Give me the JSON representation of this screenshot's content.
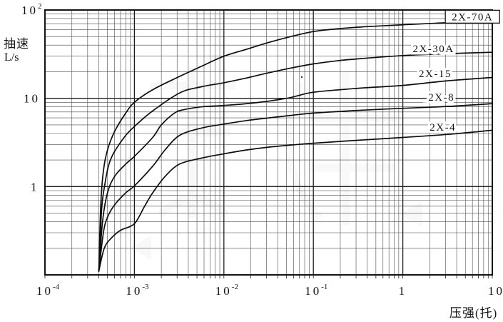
{
  "colors": {
    "background": "#ffffff",
    "frame": "#141414",
    "grid_major": "#1e1e1e",
    "grid_minor": "#4a4a4a",
    "curve": "#0d0d0d",
    "text": "#141414",
    "label_halo": "#ffffff",
    "watermark": "#8a8a8a"
  },
  "chart_data": {
    "type": "line",
    "title": "",
    "x_axis": {
      "label": "压强(托)",
      "scale": "log",
      "min": 0.0001,
      "max": 10,
      "ticks": [
        {
          "value": 0.0001,
          "base": "10",
          "exp": "-4"
        },
        {
          "value": 0.001,
          "base": "10",
          "exp": "-3"
        },
        {
          "value": 0.01,
          "base": "10",
          "exp": "-2"
        },
        {
          "value": 0.1,
          "base": "10",
          "exp": "-1"
        },
        {
          "value": 1,
          "base": "1",
          "exp": ""
        },
        {
          "value": 10,
          "base": "10",
          "exp": ""
        }
      ]
    },
    "y_axis": {
      "label_line1": "抽速",
      "label_line2": "L/s",
      "scale": "log",
      "min": 0.1,
      "max": 100,
      "ticks": [
        {
          "value": 100,
          "base": "10",
          "exp": "2"
        },
        {
          "value": 10,
          "base": "10",
          "exp": ""
        },
        {
          "value": 1,
          "base": "1",
          "exp": ""
        }
      ]
    },
    "grid": {
      "major": true,
      "minor": true
    },
    "series": [
      {
        "name": "2X-70A",
        "points": [
          [
            0.0004,
            0.11
          ],
          [
            0.00042,
            0.6
          ],
          [
            0.00045,
            1.5
          ],
          [
            0.0005,
            2.6
          ],
          [
            0.0006,
            4.2
          ],
          [
            0.0008,
            6.8
          ],
          [
            0.001,
            9.0
          ],
          [
            0.0016,
            12.5
          ],
          [
            0.0032,
            17.7
          ],
          [
            0.0056,
            23
          ],
          [
            0.01,
            30
          ],
          [
            0.018,
            36
          ],
          [
            0.032,
            43
          ],
          [
            0.056,
            50
          ],
          [
            0.1,
            57
          ],
          [
            0.18,
            61
          ],
          [
            0.32,
            64
          ],
          [
            0.56,
            66
          ],
          [
            1,
            68
          ],
          [
            1.8,
            70
          ],
          [
            3.2,
            72
          ],
          [
            5.6,
            75
          ],
          [
            10,
            78
          ]
        ]
      },
      {
        "name": "2X-30A",
        "points": [
          [
            0.0004,
            0.11
          ],
          [
            0.00043,
            0.55
          ],
          [
            0.00047,
            1.1
          ],
          [
            0.00052,
            1.8
          ],
          [
            0.0006,
            2.5
          ],
          [
            0.0008,
            3.8
          ],
          [
            0.001,
            4.8
          ],
          [
            0.0016,
            7.2
          ],
          [
            0.0032,
            11.5
          ],
          [
            0.0056,
            13.5
          ],
          [
            0.01,
            15
          ],
          [
            0.018,
            17
          ],
          [
            0.032,
            19.5
          ],
          [
            0.056,
            22
          ],
          [
            0.1,
            24.5
          ],
          [
            0.18,
            26.5
          ],
          [
            0.32,
            28
          ],
          [
            1,
            30.5
          ],
          [
            3.2,
            32
          ],
          [
            10,
            33.2
          ]
        ]
      },
      {
        "name": "2X-15",
        "points": [
          [
            0.0004,
            0.11
          ],
          [
            0.00044,
            0.4
          ],
          [
            0.0005,
            0.85
          ],
          [
            0.0006,
            1.3
          ],
          [
            0.0008,
            1.8
          ],
          [
            0.001,
            2.2
          ],
          [
            0.0016,
            3.6
          ],
          [
            0.002,
            5.0
          ],
          [
            0.0028,
            6.8
          ],
          [
            0.0035,
            7.4
          ],
          [
            0.0056,
            8.0
          ],
          [
            0.01,
            8.3
          ],
          [
            0.018,
            8.7
          ],
          [
            0.032,
            9.3
          ],
          [
            0.056,
            10.2
          ],
          [
            0.1,
            11.7
          ],
          [
            0.32,
            13
          ],
          [
            1,
            14
          ],
          [
            3.2,
            15.8
          ],
          [
            10,
            17.2
          ]
        ]
      },
      {
        "name": "2X-8",
        "points": [
          [
            0.0004,
            0.11
          ],
          [
            0.00045,
            0.3
          ],
          [
            0.0005,
            0.45
          ],
          [
            0.0006,
            0.62
          ],
          [
            0.0008,
            0.85
          ],
          [
            0.001,
            1.02
          ],
          [
            0.0016,
            1.7
          ],
          [
            0.0022,
            2.6
          ],
          [
            0.0032,
            3.8
          ],
          [
            0.0056,
            4.6
          ],
          [
            0.01,
            5.1
          ],
          [
            0.018,
            5.6
          ],
          [
            0.032,
            6.0
          ],
          [
            0.056,
            6.4
          ],
          [
            0.1,
            6.8
          ],
          [
            0.32,
            7.3
          ],
          [
            1,
            7.7
          ],
          [
            3.2,
            8.1
          ],
          [
            10,
            8.7
          ]
        ]
      },
      {
        "name": "2X-4",
        "points": [
          [
            0.0004,
            0.11
          ],
          [
            0.00046,
            0.2
          ],
          [
            0.00055,
            0.26
          ],
          [
            0.0007,
            0.32
          ],
          [
            0.001,
            0.38
          ],
          [
            0.0013,
            0.6
          ],
          [
            0.0016,
            0.85
          ],
          [
            0.0022,
            1.3
          ],
          [
            0.0032,
            1.8
          ],
          [
            0.0056,
            2.1
          ],
          [
            0.01,
            2.35
          ],
          [
            0.018,
            2.6
          ],
          [
            0.032,
            2.8
          ],
          [
            0.056,
            2.95
          ],
          [
            0.1,
            3.1
          ],
          [
            0.32,
            3.35
          ],
          [
            1,
            3.6
          ],
          [
            3.2,
            3.9
          ],
          [
            10,
            4.35
          ]
        ]
      }
    ],
    "curve_labels": [
      {
        "text": "2X-70A",
        "p": 6,
        "s": 84,
        "boxed": true
      },
      {
        "text": "2X-30A",
        "p": 2.2,
        "s": 36.5,
        "boxed": false
      },
      {
        "text": "2X-15",
        "p": 2.3,
        "s": 19,
        "boxed": false
      },
      {
        "text": "2X-8",
        "p": 2.7,
        "s": 10.3,
        "boxed": false
      },
      {
        "text": "2X-4",
        "p": 2.8,
        "s": 4.7,
        "boxed": false
      }
    ]
  }
}
